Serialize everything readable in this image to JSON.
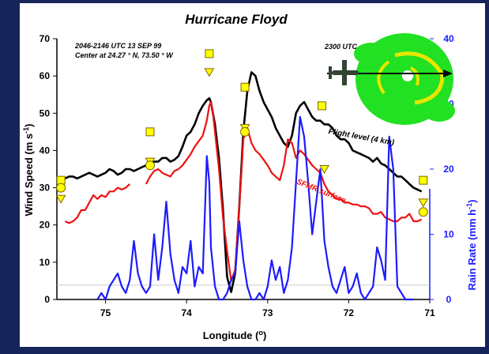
{
  "chart_data": {
    "type": "line",
    "title": "Hurricane Floyd",
    "annotation_lines": [
      "2046-2146 UTC 13 SEP 99",
      "Center at 24.27 ° N, 73.50 ° W"
    ],
    "inset_label": "2300 UTC",
    "xlabel": "Longitude (°)",
    "xlabel_main": "Longitude (",
    "xlabel_sup": "o",
    "xlabel_end": ")",
    "ylabel_left": "Wind Speed (m s-1)",
    "ylabel_left_main": "Wind Speed (m s",
    "ylabel_left_sup": "-1",
    "ylabel_left_end": ")",
    "ylabel_right": "Rain Rate (mm h-1)",
    "ylabel_right_main": "Rain Rate (mm h",
    "ylabel_right_sup": "-1",
    "ylabel_right_end": ")",
    "xlim": [
      75.6,
      71.0
    ],
    "x_reversed": true,
    "ylim_left": [
      0,
      70
    ],
    "ylim_right": [
      0,
      40
    ],
    "x_ticks": [
      "75",
      "74",
      "73",
      "72",
      "71"
    ],
    "x_tick_values": [
      75,
      74,
      73,
      72,
      71
    ],
    "y_left_ticks": [
      "0",
      "10",
      "20",
      "30",
      "40",
      "50",
      "60",
      "70"
    ],
    "y_left_tick_values": [
      0,
      10,
      20,
      30,
      40,
      50,
      60,
      70
    ],
    "y_right_ticks": [
      "0",
      "10",
      "20",
      "30",
      "40"
    ],
    "y_right_tick_values": [
      0,
      10,
      20,
      30,
      40
    ],
    "grid": false,
    "colors": {
      "background": "#17245a",
      "plot_bg": "#ffffff",
      "flight": "#000000",
      "sfmr": "#ee1111",
      "rain": "#1c1cff",
      "marker": "#ffff00",
      "marker_edge": "#806600",
      "inset_green": "#22e022",
      "inset_yellow": "#e6e600"
    },
    "series": [
      {
        "name": "Flight level (4 km)",
        "color": "#000000",
        "x": [
          75.6,
          75.55,
          75.5,
          75.45,
          75.4,
          75.35,
          75.3,
          75.25,
          75.2,
          75.15,
          75.1,
          75.05,
          75.0,
          74.95,
          74.9,
          74.85,
          74.8,
          74.75,
          74.7,
          74.65,
          74.6,
          74.55,
          74.5,
          74.45,
          74.4,
          74.35,
          74.3,
          74.25,
          74.2,
          74.15,
          74.1,
          74.05,
          74.0,
          73.95,
          73.9,
          73.85,
          73.8,
          73.75,
          73.72,
          73.7,
          73.65,
          73.6,
          73.55,
          73.5,
          73.45,
          73.4,
          73.35,
          73.3,
          73.25,
          73.2,
          73.15,
          73.1,
          73.05,
          73.0,
          72.95,
          72.9,
          72.85,
          72.8,
          72.75,
          72.7,
          72.65,
          72.6,
          72.55,
          72.5,
          72.45,
          72.4,
          72.35,
          72.3,
          72.25,
          72.2,
          72.15,
          72.1,
          72.05,
          72.0,
          71.95,
          71.9,
          71.85,
          71.8,
          71.75,
          71.7,
          71.65,
          71.6,
          71.55,
          71.5,
          71.45,
          71.4,
          71.35,
          71.3,
          71.25,
          71.2,
          71.15,
          71.1
        ],
        "y": [
          31,
          31.5,
          32.5,
          33,
          33,
          32.5,
          33,
          33.5,
          34,
          33.5,
          33,
          33.5,
          34,
          35,
          34.5,
          33.5,
          34,
          35,
          35,
          34.5,
          35,
          35.5,
          36,
          36.5,
          37,
          37,
          38,
          38,
          37,
          37.5,
          38.5,
          41,
          44,
          45,
          47,
          50,
          52,
          53.5,
          54,
          53,
          47,
          38,
          24,
          6,
          2,
          7,
          25,
          45,
          56,
          61,
          60,
          56,
          53,
          51,
          49,
          46,
          44,
          42,
          41,
          44,
          50,
          52,
          53,
          51,
          49,
          48,
          48,
          47,
          47,
          46,
          44,
          43,
          43,
          42,
          40,
          39.5,
          39,
          38.5,
          38,
          37,
          38,
          36.5,
          36,
          35,
          34,
          33,
          33,
          32,
          31,
          30,
          29.5,
          29
        ]
      },
      {
        "name": "SFMR surface",
        "color": "#ee1111",
        "segments": [
          {
            "x": [
              75.5,
              75.45,
              75.4,
              75.35,
              75.3,
              75.25,
              75.2,
              75.15,
              75.1,
              75.05,
              75.0,
              74.95,
              74.9,
              74.85,
              74.8,
              74.75,
              74.7
            ],
            "y": [
              21,
              20.5,
              21,
              22,
              24,
              24,
              26,
              28,
              27,
              28,
              27.5,
              29,
              29,
              30,
              29.5,
              30,
              31
            ]
          },
          {
            "x": [
              74.5,
              74.45,
              74.4,
              74.35,
              74.3,
              74.25,
              74.2,
              74.15,
              74.1,
              74.05,
              74.0,
              73.95,
              73.9,
              73.85,
              73.8,
              73.75,
              73.72,
              73.7,
              73.68,
              73.65,
              73.6,
              73.55,
              73.5,
              73.45,
              73.4,
              73.35,
              73.32,
              73.3,
              73.25,
              73.2,
              73.15,
              73.1,
              73.05,
              73.0,
              72.95,
              72.9,
              72.85,
              72.8,
              72.75,
              72.7,
              72.65,
              72.6,
              72.55,
              72.5,
              72.45,
              72.4,
              72.35,
              72.3,
              72.25,
              72.2,
              72.15,
              72.1,
              72.05,
              72.0,
              71.95,
              71.9,
              71.85,
              71.8,
              71.75,
              71.7,
              71.65,
              71.6,
              71.55,
              71.5,
              71.45,
              71.4,
              71.35,
              71.3,
              71.25,
              71.2,
              71.15,
              71.1
            ],
            "y": [
              31,
              33,
              34.5,
              35,
              34,
              33.5,
              33,
              34.5,
              35,
              36,
              37.5,
              39,
              41,
              42.5,
              44,
              48,
              52,
              53,
              51,
              45,
              35,
              22,
              13,
              5,
              8,
              25,
              35,
              43,
              46,
              42,
              40,
              39,
              37.5,
              36,
              34,
              33,
              32,
              36,
              43,
              42,
              38,
              40,
              39,
              37.5,
              36,
              35,
              34,
              31,
              29,
              28,
              27,
              27,
              26,
              26,
              25.5,
              25.5,
              25,
              25,
              24.5,
              23,
              23,
              23.5,
              22,
              21.5,
              21,
              21,
              22,
              22,
              23,
              21,
              21,
              21.5
            ]
          }
        ]
      },
      {
        "name": "Rain Rate",
        "color": "#1c1cff",
        "axis": "right",
        "x": [
          75.1,
          75.05,
          75.0,
          74.95,
          74.9,
          74.85,
          74.8,
          74.75,
          74.7,
          74.65,
          74.6,
          74.55,
          74.5,
          74.45,
          74.4,
          74.35,
          74.3,
          74.25,
          74.2,
          74.15,
          74.1,
          74.05,
          74.0,
          73.95,
          73.9,
          73.85,
          73.8,
          73.75,
          73.72,
          73.7,
          73.65,
          73.6,
          73.55,
          73.5,
          73.45,
          73.4,
          73.35,
          73.3,
          73.25,
          73.2,
          73.15,
          73.1,
          73.05,
          73.0,
          72.95,
          72.9,
          72.85,
          72.8,
          72.75,
          72.7,
          72.65,
          72.6,
          72.55,
          72.5,
          72.45,
          72.4,
          72.35,
          72.3,
          72.25,
          72.2,
          72.15,
          72.1,
          72.05,
          72.0,
          71.95,
          71.9,
          71.85,
          71.8,
          71.75,
          71.7,
          71.65,
          71.6,
          71.55,
          71.5,
          71.45,
          71.4,
          71.35,
          71.3,
          71.25,
          71.2
        ],
        "y": [
          0,
          1,
          0,
          2,
          3,
          4,
          2,
          1,
          3,
          9,
          4,
          2,
          1,
          2,
          10,
          3,
          8,
          15,
          7,
          3,
          1,
          5,
          4,
          9,
          2,
          5,
          4,
          22,
          18,
          8,
          2,
          0,
          0,
          1,
          3,
          4,
          12,
          6,
          2,
          0,
          0,
          1,
          0,
          2,
          6,
          3,
          5,
          1,
          3,
          8,
          18,
          28,
          25,
          18,
          10,
          15,
          20,
          9,
          5,
          2,
          1,
          3,
          5,
          1,
          2,
          4,
          1,
          0,
          1,
          2,
          8,
          6,
          3,
          25,
          20,
          2,
          1,
          0,
          0,
          0
        ]
      },
      {
        "name": "Squares",
        "marker": "square",
        "x": [
          75.55,
          74.45,
          73.72,
          73.28,
          72.33,
          71.08
        ],
        "y": [
          32,
          45,
          66,
          57,
          52,
          32
        ]
      },
      {
        "name": "Triangles",
        "marker": "triangle-down",
        "x": [
          75.55,
          74.45,
          73.72,
          73.28,
          72.3,
          71.08
        ],
        "y": [
          27,
          37,
          61,
          46,
          35,
          26
        ]
      },
      {
        "name": "Circles",
        "marker": "circle",
        "x": [
          75.55,
          74.45,
          73.28,
          71.08
        ],
        "y": [
          30,
          36,
          45,
          23.5
        ]
      }
    ],
    "labels": [
      {
        "text": "Flight level (4 km)",
        "color": "#000000",
        "x": 71.85,
        "y": 43,
        "rotate": 10
      },
      {
        "text": "SFMR surface",
        "color": "#ee1111",
        "x": 72.35,
        "y": 28.5,
        "rotate": 22
      }
    ],
    "hline": {
      "axis": "right",
      "value": 2.2,
      "color": "#bbbbbb"
    }
  }
}
